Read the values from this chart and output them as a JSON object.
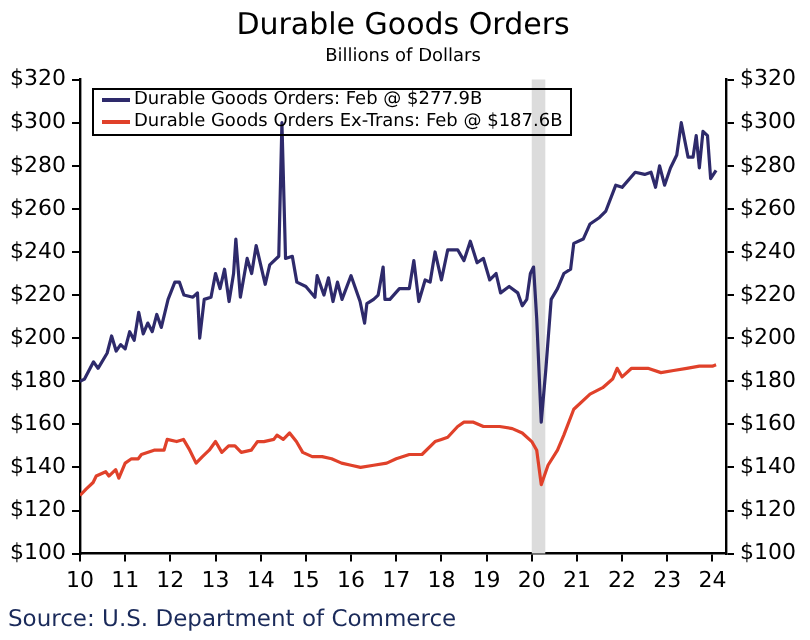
{
  "chart_data": {
    "type": "line",
    "title": "Durable Goods Orders",
    "subtitle": "Billions of Dollars",
    "annotations": [
      "Source: U.S. Department of Commerce"
    ],
    "series": [
      {
        "name": "Durable Goods Orders: Feb @ $277.9B",
        "color": "#2e2a6b",
        "x": [
          10.0,
          10.1,
          10.3,
          10.4,
          10.6,
          10.7,
          10.8,
          10.9,
          11.0,
          11.1,
          11.2,
          11.3,
          11.4,
          11.5,
          11.6,
          11.7,
          11.8,
          11.95,
          12.1,
          12.2,
          12.3,
          12.5,
          12.6,
          12.65,
          12.75,
          12.9,
          13.0,
          13.1,
          13.2,
          13.3,
          13.4,
          13.45,
          13.55,
          13.7,
          13.8,
          13.9,
          14.1,
          14.2,
          14.4,
          14.47,
          14.55,
          14.7,
          14.8,
          15.0,
          15.2,
          15.25,
          15.4,
          15.5,
          15.6,
          15.7,
          15.8,
          16.0,
          16.2,
          16.3,
          16.35,
          16.5,
          16.6,
          16.71,
          16.75,
          16.86,
          17.07,
          17.17,
          17.29,
          17.39,
          17.5,
          17.64,
          17.75,
          17.86,
          18.0,
          18.14,
          18.36,
          18.5,
          18.64,
          18.79,
          18.93,
          19.07,
          19.21,
          19.31,
          19.5,
          19.69,
          19.79,
          19.89,
          19.97,
          20.04,
          20.11,
          20.21,
          20.31,
          20.43,
          20.57,
          20.71,
          20.86,
          20.93,
          21.14,
          21.29,
          21.5,
          21.64,
          21.86,
          22.0,
          22.29,
          22.5,
          22.64,
          22.74,
          22.83,
          22.94,
          23.07,
          23.21,
          23.31,
          23.46,
          23.57,
          23.64,
          23.71,
          23.79,
          23.89,
          23.96,
          24.08
        ],
        "values": [
          180,
          181,
          189,
          186,
          193,
          201,
          194,
          197,
          195,
          203,
          199,
          212,
          202,
          207,
          203,
          211,
          205,
          218,
          226,
          226,
          220,
          219,
          221,
          200,
          218,
          219,
          230,
          223,
          232,
          217,
          230,
          246,
          219,
          237,
          230,
          243,
          225,
          234,
          238,
          300,
          237,
          238,
          226,
          224,
          219,
          229,
          220,
          228,
          217,
          226,
          218,
          229,
          217,
          207,
          216,
          218,
          220,
          233,
          218,
          218,
          223,
          223,
          223,
          236,
          217,
          227,
          226,
          240,
          227,
          241,
          241,
          236,
          245,
          235,
          237,
          227,
          230,
          221,
          224,
          221,
          215,
          218,
          230,
          233,
          209,
          161,
          185,
          218,
          223,
          230,
          232,
          244,
          246,
          253,
          256,
          259,
          271,
          270,
          277,
          276,
          277,
          270,
          280,
          271,
          279,
          285,
          300,
          284,
          284,
          294,
          279,
          296,
          294,
          274,
          277.9
        ]
      },
      {
        "name": "Durable Goods Orders Ex-Trans: Feb @ $187.6B",
        "color": "#e0412a",
        "x": [
          10.0,
          10.14,
          10.29,
          10.36,
          10.57,
          10.64,
          10.79,
          10.86,
          11.0,
          11.14,
          11.29,
          11.36,
          11.64,
          11.86,
          11.93,
          12.14,
          12.29,
          12.43,
          12.57,
          12.71,
          12.86,
          13.0,
          13.14,
          13.29,
          13.43,
          13.57,
          13.79,
          13.93,
          14.07,
          14.29,
          14.36,
          14.5,
          14.64,
          14.79,
          14.93,
          15.14,
          15.36,
          15.57,
          15.79,
          16.0,
          16.21,
          16.5,
          16.79,
          17.0,
          17.29,
          17.57,
          17.86,
          18.0,
          18.14,
          18.36,
          18.5,
          18.71,
          18.93,
          19.29,
          19.57,
          19.79,
          20.0,
          20.11,
          20.21,
          20.36,
          20.57,
          20.71,
          20.93,
          21.29,
          21.57,
          21.79,
          21.89,
          22.0,
          22.21,
          22.57,
          22.86,
          23.14,
          23.43,
          23.71,
          24.0,
          24.08
        ],
        "values": [
          127,
          130,
          133,
          136,
          138,
          136,
          139,
          135,
          142,
          144,
          144,
          146,
          148,
          148,
          153,
          152,
          153,
          148,
          142,
          145,
          148,
          152,
          147,
          150,
          150,
          147,
          148,
          152,
          152,
          153,
          155,
          153,
          156,
          152,
          147,
          145,
          145,
          144,
          142,
          141,
          140,
          141,
          142,
          144,
          146,
          146,
          152,
          153,
          154,
          159,
          161,
          161,
          159,
          159,
          158,
          156,
          152,
          148,
          132,
          141,
          148,
          155,
          167,
          174,
          177,
          181,
          186,
          182,
          186,
          186,
          184,
          185,
          186,
          187,
          187,
          187.6
        ]
      }
    ],
    "xlim": [
      10,
      24.3
    ],
    "xticks": [
      10,
      11,
      12,
      13,
      14,
      15,
      16,
      17,
      18,
      19,
      20,
      21,
      22,
      23,
      24
    ],
    "ylim": [
      100,
      320
    ],
    "yticks": [
      {
        "value": 100,
        "label": "$100"
      },
      {
        "value": 120,
        "label": "$120"
      },
      {
        "value": 140,
        "label": "$140"
      },
      {
        "value": 160,
        "label": "$160"
      },
      {
        "value": 180,
        "label": "$180"
      },
      {
        "value": 200,
        "label": "$200"
      },
      {
        "value": 220,
        "label": "$220"
      },
      {
        "value": 240,
        "label": "$240"
      },
      {
        "value": 260,
        "label": "$260"
      },
      {
        "value": 280,
        "label": "$280"
      },
      {
        "value": 300,
        "label": "$300"
      },
      {
        "value": 320,
        "label": "$320"
      }
    ],
    "y2lim": [
      100,
      320
    ],
    "y2ticks": [
      {
        "value": 100,
        "label": "$100"
      },
      {
        "value": 120,
        "label": "$120"
      },
      {
        "value": 140,
        "label": "$140"
      },
      {
        "value": 160,
        "label": "$160"
      },
      {
        "value": 180,
        "label": "$180"
      },
      {
        "value": 200,
        "label": "$200"
      },
      {
        "value": 220,
        "label": "$220"
      },
      {
        "value": 240,
        "label": "$240"
      },
      {
        "value": 260,
        "label": "$260"
      },
      {
        "value": 280,
        "label": "$280"
      },
      {
        "value": 300,
        "label": "$300"
      },
      {
        "value": 320,
        "label": "$320"
      }
    ],
    "bands": [
      {
        "axis": "x",
        "from": 20.0,
        "to": 20.3,
        "color": "#dcdcdc"
      }
    ],
    "legend": "top left",
    "marker": "none",
    "line_style": "solid",
    "grid": false
  }
}
